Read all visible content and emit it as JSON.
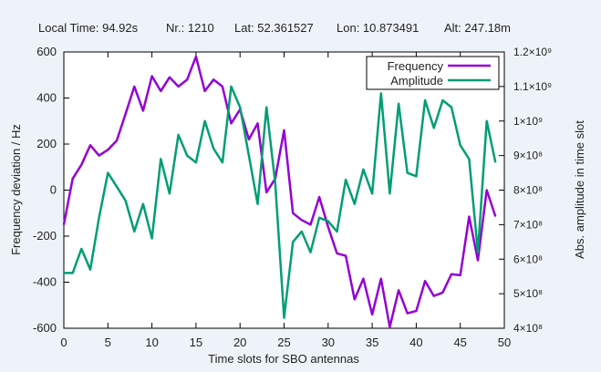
{
  "header": {
    "local_time": "Local Time: 94.92s",
    "nr": "Nr.: 1210",
    "lat": "Lat: 52.361527",
    "lon": "Lon: 10.873491",
    "alt": "Alt: 247.18m"
  },
  "colors": {
    "background": "#eef3f9",
    "plot_background": "#ffffff",
    "frequency": "#9400d3",
    "amplitude": "#009e73"
  },
  "chart_data": {
    "type": "line",
    "xlabel": "Time slots for SBO antennas",
    "ylabel": "Frequency deviation / Hz",
    "y2label": "Abs. amplitude in time slot",
    "xlim": [
      0,
      50
    ],
    "ylim": [
      -600,
      600
    ],
    "y2lim": [
      400000000,
      1200000000
    ],
    "x_ticks": [
      0,
      5,
      10,
      15,
      20,
      25,
      30,
      35,
      40,
      45,
      50
    ],
    "x_tick_labels": [
      "0",
      "5",
      "10",
      "15",
      "20",
      "25",
      "30",
      "35",
      "40",
      "45",
      "50"
    ],
    "y_ticks": [
      -600,
      -400,
      -200,
      0,
      200,
      400,
      600
    ],
    "y_tick_labels": [
      "-600",
      "-400",
      "-200",
      "0",
      "200",
      "400",
      "600"
    ],
    "y2_ticks": [
      400000000,
      500000000,
      600000000,
      700000000,
      800000000,
      900000000,
      1000000000,
      1100000000,
      1200000000
    ],
    "y2_tick_labels": [
      "4×10⁸",
      "5×10⁸",
      "6×10⁸",
      "7×10⁸",
      "8×10⁸",
      "9×10⁸",
      "1×10⁹",
      "1.1×10⁹",
      "1.2×10⁹"
    ],
    "grid": false,
    "legend_position": "top-right",
    "series": [
      {
        "name": "Frequency",
        "axis": "left",
        "x": [
          0,
          1,
          2,
          3,
          4,
          5,
          6,
          7,
          8,
          9,
          10,
          11,
          12,
          13,
          14,
          15,
          16,
          17,
          18,
          19,
          20,
          21,
          22,
          23,
          24,
          25,
          26,
          27,
          28,
          29,
          30,
          31,
          32,
          33,
          34,
          35,
          36,
          37,
          38,
          39,
          40,
          41,
          42,
          43,
          44,
          45,
          46,
          47,
          48,
          49
        ],
        "values": [
          -150,
          50,
          110,
          195,
          150,
          175,
          215,
          330,
          450,
          345,
          495,
          430,
          490,
          450,
          480,
          580,
          430,
          480,
          450,
          290,
          350,
          220,
          290,
          -10,
          50,
          260,
          -100,
          -130,
          -150,
          -30,
          -160,
          -275,
          -285,
          -475,
          -385,
          -540,
          -385,
          -595,
          -435,
          -535,
          -525,
          -395,
          -460,
          -445,
          -365,
          -370,
          -115,
          -305,
          0,
          -115
        ]
      },
      {
        "name": "Amplitude",
        "axis": "right",
        "x": [
          0,
          1,
          2,
          3,
          4,
          5,
          6,
          7,
          8,
          9,
          10,
          11,
          12,
          13,
          14,
          15,
          16,
          17,
          18,
          19,
          20,
          21,
          22,
          23,
          24,
          25,
          26,
          27,
          28,
          29,
          30,
          31,
          32,
          33,
          34,
          35,
          36,
          37,
          38,
          39,
          40,
          41,
          42,
          43,
          44,
          45,
          46,
          47,
          48,
          49
        ],
        "values": [
          560000000,
          560000000,
          630000000,
          570000000,
          720000000,
          850000000,
          810000000,
          770000000,
          680000000,
          760000000,
          660000000,
          890000000,
          790000000,
          960000000,
          900000000,
          880000000,
          1000000000,
          920000000,
          880000000,
          1100000000,
          1040000000,
          900000000,
          760000000,
          1040000000,
          820000000,
          430000000,
          650000000,
          680000000,
          620000000,
          720000000,
          710000000,
          680000000,
          830000000,
          760000000,
          860000000,
          790000000,
          1080000000,
          790000000,
          1050000000,
          850000000,
          840000000,
          1060000000,
          980000000,
          1060000000,
          1040000000,
          930000000,
          890000000,
          620000000,
          1000000000,
          880000000
        ]
      }
    ]
  }
}
